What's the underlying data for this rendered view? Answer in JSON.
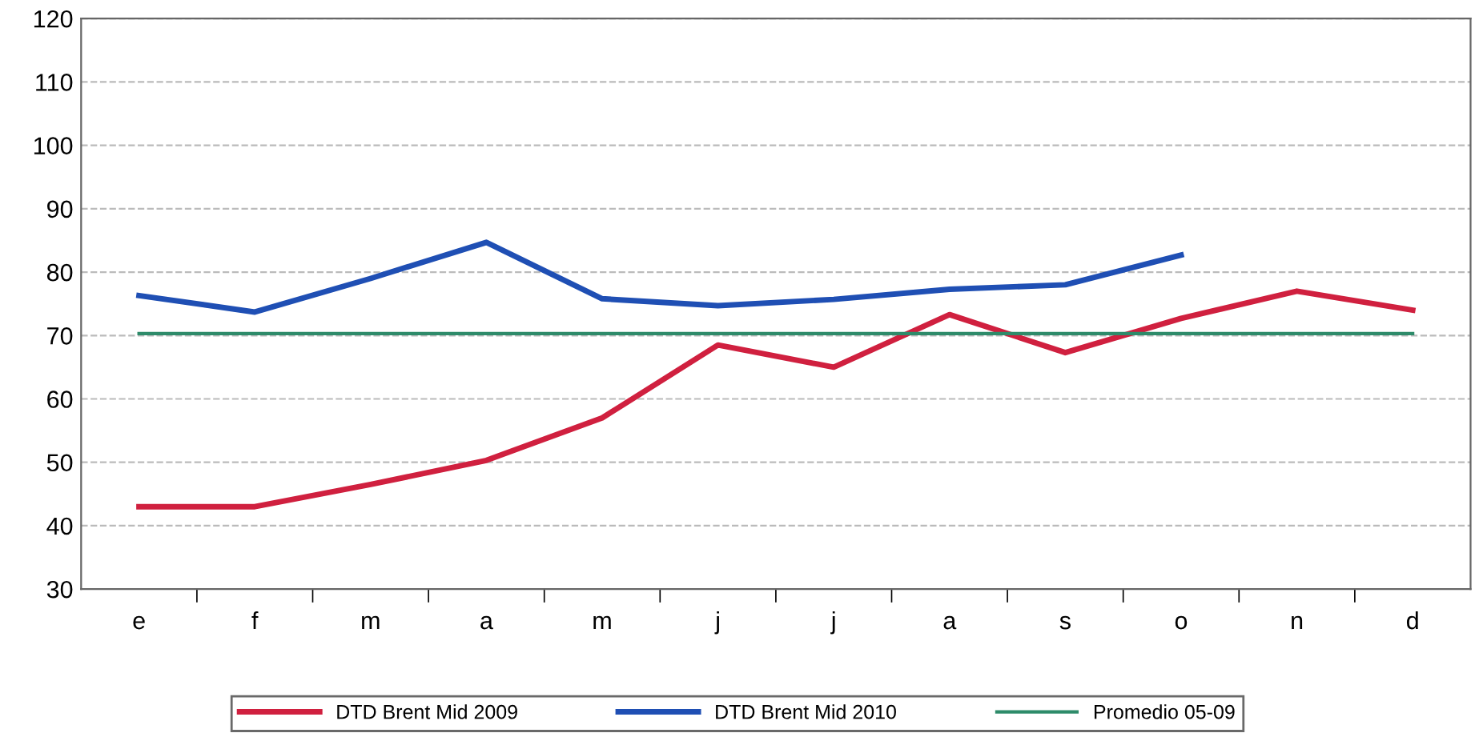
{
  "chart_data": {
    "type": "line",
    "categories": [
      "e",
      "f",
      "m",
      "a",
      "m",
      "j",
      "j",
      "a",
      "s",
      "o",
      "n",
      "d"
    ],
    "series": [
      {
        "name": "DTD Brent Mid 2009",
        "color": "#d0203f",
        "values": [
          43,
          43,
          46.5,
          50.3,
          57,
          68.5,
          65,
          73.3,
          67.3,
          72.7,
          77,
          74
        ]
      },
      {
        "name": "DTD Brent Mid 2010",
        "color": "#1f4fb4",
        "values": [
          76.3,
          73.7,
          79,
          84.7,
          75.8,
          74.7,
          75.7,
          77.3,
          78,
          82.7,
          null,
          null
        ]
      },
      {
        "name": "Promedio 05-09",
        "color": "#2e8b6a",
        "values": [
          70.3,
          70.3,
          70.3,
          70.3,
          70.3,
          70.3,
          70.3,
          70.3,
          70.3,
          70.3,
          70.3,
          70.3
        ]
      }
    ],
    "ylim": [
      30,
      120
    ],
    "yticks": [
      30,
      40,
      50,
      60,
      70,
      80,
      90,
      100,
      110,
      120
    ],
    "grid": "y",
    "legend": "bottom",
    "marker": "none",
    "line_style": "solid"
  }
}
